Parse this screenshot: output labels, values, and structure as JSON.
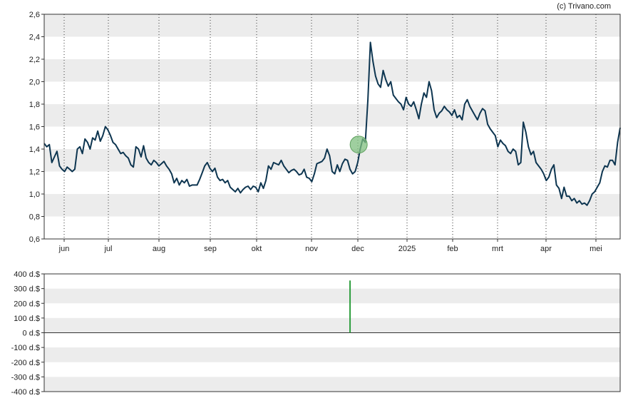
{
  "credit": "(c) Trivano.com",
  "chart_data": [
    {
      "type": "line",
      "name": "price",
      "ylim": [
        0.6,
        2.6
      ],
      "y_ticks": [
        "0,6",
        "0,8",
        "1,0",
        "1,2",
        "1,4",
        "1,6",
        "1,8",
        "2,0",
        "2,2",
        "2,4",
        "2,6"
      ],
      "x_ticks": [
        "jun",
        "jul",
        "aug",
        "sep",
        "okt",
        "nov",
        "dec",
        "2025",
        "feb",
        "mrt",
        "apr",
        "mei"
      ],
      "grid": "horizontal bands, dotted vertical month lines",
      "line_color": "#0d3550",
      "marker": {
        "x_index": 0.546,
        "value": 1.44,
        "color": "#7fbf7f"
      },
      "values": [
        1.45,
        1.42,
        1.44,
        1.28,
        1.33,
        1.38,
        1.25,
        1.22,
        1.2,
        1.24,
        1.22,
        1.2,
        1.22,
        1.4,
        1.42,
        1.36,
        1.49,
        1.46,
        1.4,
        1.5,
        1.48,
        1.56,
        1.47,
        1.52,
        1.6,
        1.57,
        1.52,
        1.46,
        1.44,
        1.4,
        1.36,
        1.37,
        1.34,
        1.32,
        1.26,
        1.24,
        1.42,
        1.4,
        1.33,
        1.43,
        1.32,
        1.28,
        1.26,
        1.3,
        1.28,
        1.25,
        1.27,
        1.29,
        1.25,
        1.22,
        1.18,
        1.1,
        1.14,
        1.08,
        1.12,
        1.1,
        1.13,
        1.07,
        1.08,
        1.08,
        1.08,
        1.13,
        1.19,
        1.25,
        1.28,
        1.23,
        1.2,
        1.23,
        1.15,
        1.12,
        1.13,
        1.1,
        1.12,
        1.06,
        1.04,
        1.02,
        1.05,
        1.01,
        1.04,
        1.06,
        1.07,
        1.04,
        1.07,
        1.06,
        1.02,
        1.1,
        1.05,
        1.12,
        1.25,
        1.22,
        1.28,
        1.27,
        1.26,
        1.3,
        1.25,
        1.22,
        1.19,
        1.21,
        1.22,
        1.2,
        1.17,
        1.18,
        1.22,
        1.15,
        1.14,
        1.11,
        1.18,
        1.27,
        1.28,
        1.29,
        1.32,
        1.4,
        1.34,
        1.2,
        1.18,
        1.26,
        1.2,
        1.27,
        1.31,
        1.3,
        1.22,
        1.18,
        1.2,
        1.28,
        1.4,
        1.49,
        1.46,
        1.84,
        2.35,
        2.18,
        2.05,
        1.98,
        1.95,
        2.1,
        2.02,
        1.96,
        2.0,
        1.88,
        1.85,
        1.82,
        1.8,
        1.75,
        1.86,
        1.8,
        1.78,
        1.82,
        1.75,
        1.67,
        1.8,
        1.9,
        1.86,
        2.0,
        1.92,
        1.75,
        1.68,
        1.72,
        1.74,
        1.78,
        1.75,
        1.73,
        1.7,
        1.75,
        1.68,
        1.7,
        1.66,
        1.8,
        1.84,
        1.78,
        1.74,
        1.7,
        1.66,
        1.72,
        1.76,
        1.74,
        1.62,
        1.58,
        1.55,
        1.52,
        1.42,
        1.48,
        1.45,
        1.43,
        1.38,
        1.36,
        1.4,
        1.38,
        1.26,
        1.28,
        1.64,
        1.55,
        1.42,
        1.35,
        1.38,
        1.28,
        1.25,
        1.22,
        1.18,
        1.12,
        1.15,
        1.22,
        1.26,
        1.08,
        1.05,
        0.96,
        1.06,
        0.98,
        0.98,
        0.94,
        0.96,
        0.92,
        0.94,
        0.91,
        0.92,
        0.9,
        0.94,
        1.0,
        1.02,
        1.06,
        1.1,
        1.2,
        1.25,
        1.24,
        1.3,
        1.3,
        1.26,
        1.46,
        1.59
      ]
    },
    {
      "type": "bar",
      "name": "volume",
      "ylim": [
        -400,
        400
      ],
      "y_ticks": [
        "400 d.$",
        "300 d.$",
        "200 d.$",
        "100 d.$",
        "0 d.$",
        "-100 d.$",
        "-200 d.$",
        "-300 d.$",
        "-400 d.$"
      ],
      "bar": {
        "x_index": 0.531,
        "value": 355,
        "color": "#2e9e3e"
      }
    }
  ]
}
